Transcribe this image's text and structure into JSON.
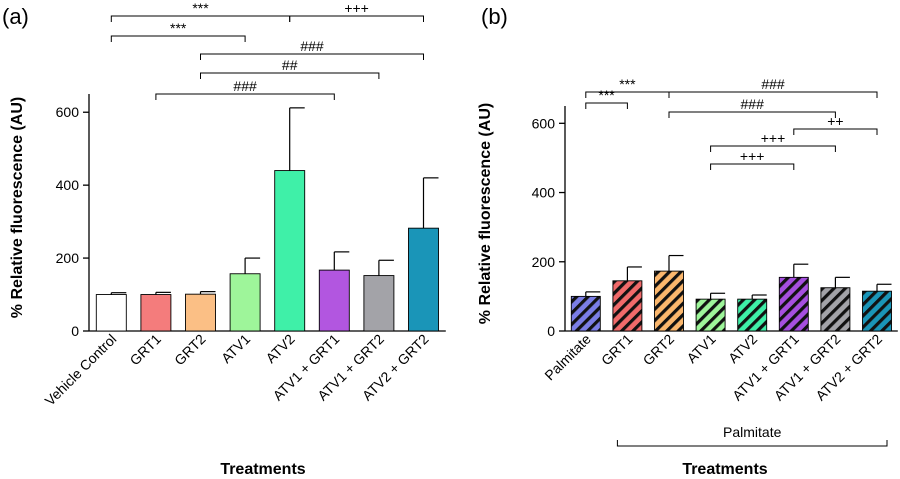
{
  "chart_data": [
    {
      "panel": "(a)",
      "type": "bar",
      "xlabel": "Treatments",
      "ylabel": "% Relative fluorescence (AU)",
      "ylim": [
        0,
        650
      ],
      "yticks": [
        0,
        200,
        400,
        600
      ],
      "grid": false,
      "pattern": "solid",
      "categories": [
        "Vehicle Control",
        "GRT1",
        "GRT2",
        "ATV1",
        "ATV2",
        "ATV1 + GRT1",
        "ATV1 + GRT2",
        "ATV2 + GRT2"
      ],
      "values": [
        100,
        100,
        101,
        157,
        440,
        167,
        152,
        282
      ],
      "errors": [
        5,
        6,
        7,
        43,
        172,
        50,
        42,
        138
      ],
      "colors": [
        "#ffffff",
        "#f47c7c",
        "#fbbf85",
        "#9ef59a",
        "#3ff0a8",
        "#b256e0",
        "#a3a3a8",
        "#1a95b8"
      ],
      "significance": [
        {
          "label": "***",
          "from": 0,
          "to": 4
        },
        {
          "label": "+++",
          "from": 4,
          "to": 7
        },
        {
          "label": "***",
          "from": 0,
          "to": 3
        },
        {
          "label": "###",
          "from": 2,
          "to": 7
        },
        {
          "label": "##",
          "from": 2,
          "to": 6
        },
        {
          "label": "###",
          "from": 1,
          "to": 5
        }
      ]
    },
    {
      "panel": "(b)",
      "type": "bar",
      "xlabel": "Treatments",
      "ylabel": "% Relative fluorescence (AU)",
      "ylim": [
        0,
        650
      ],
      "yticks": [
        0,
        200,
        400,
        600
      ],
      "grid": false,
      "pattern": "diagonal-hatch",
      "categories": [
        "Palmitate",
        "GRT1",
        "GRT2",
        "ATV1",
        "ATV2",
        "ATV1 + GRT1",
        "ATV1 + GRT2",
        "ATV2 + GRT2"
      ],
      "values": [
        100,
        145,
        173,
        92,
        92,
        155,
        125,
        115
      ],
      "errors": [
        13,
        40,
        45,
        17,
        12,
        38,
        30,
        20
      ],
      "colors": [
        "#7b7ee6",
        "#f06a6a",
        "#fbb76d",
        "#9ef59a",
        "#3ff0a8",
        "#a64fe0",
        "#a3a3a8",
        "#1a95b8"
      ],
      "group_label": "Palmitate",
      "group_span": [
        1,
        7
      ],
      "significance": [
        {
          "label": "***",
          "from": 0,
          "to": 2
        },
        {
          "label": "###",
          "from": 2,
          "to": 7
        },
        {
          "label": "***",
          "from": 0,
          "to": 1
        },
        {
          "label": "###",
          "from": 2,
          "to": 6
        },
        {
          "label": "++",
          "from": 5,
          "to": 7
        },
        {
          "label": "+++",
          "from": 3,
          "to": 6
        },
        {
          "label": "+++",
          "from": 3,
          "to": 5
        }
      ]
    }
  ]
}
